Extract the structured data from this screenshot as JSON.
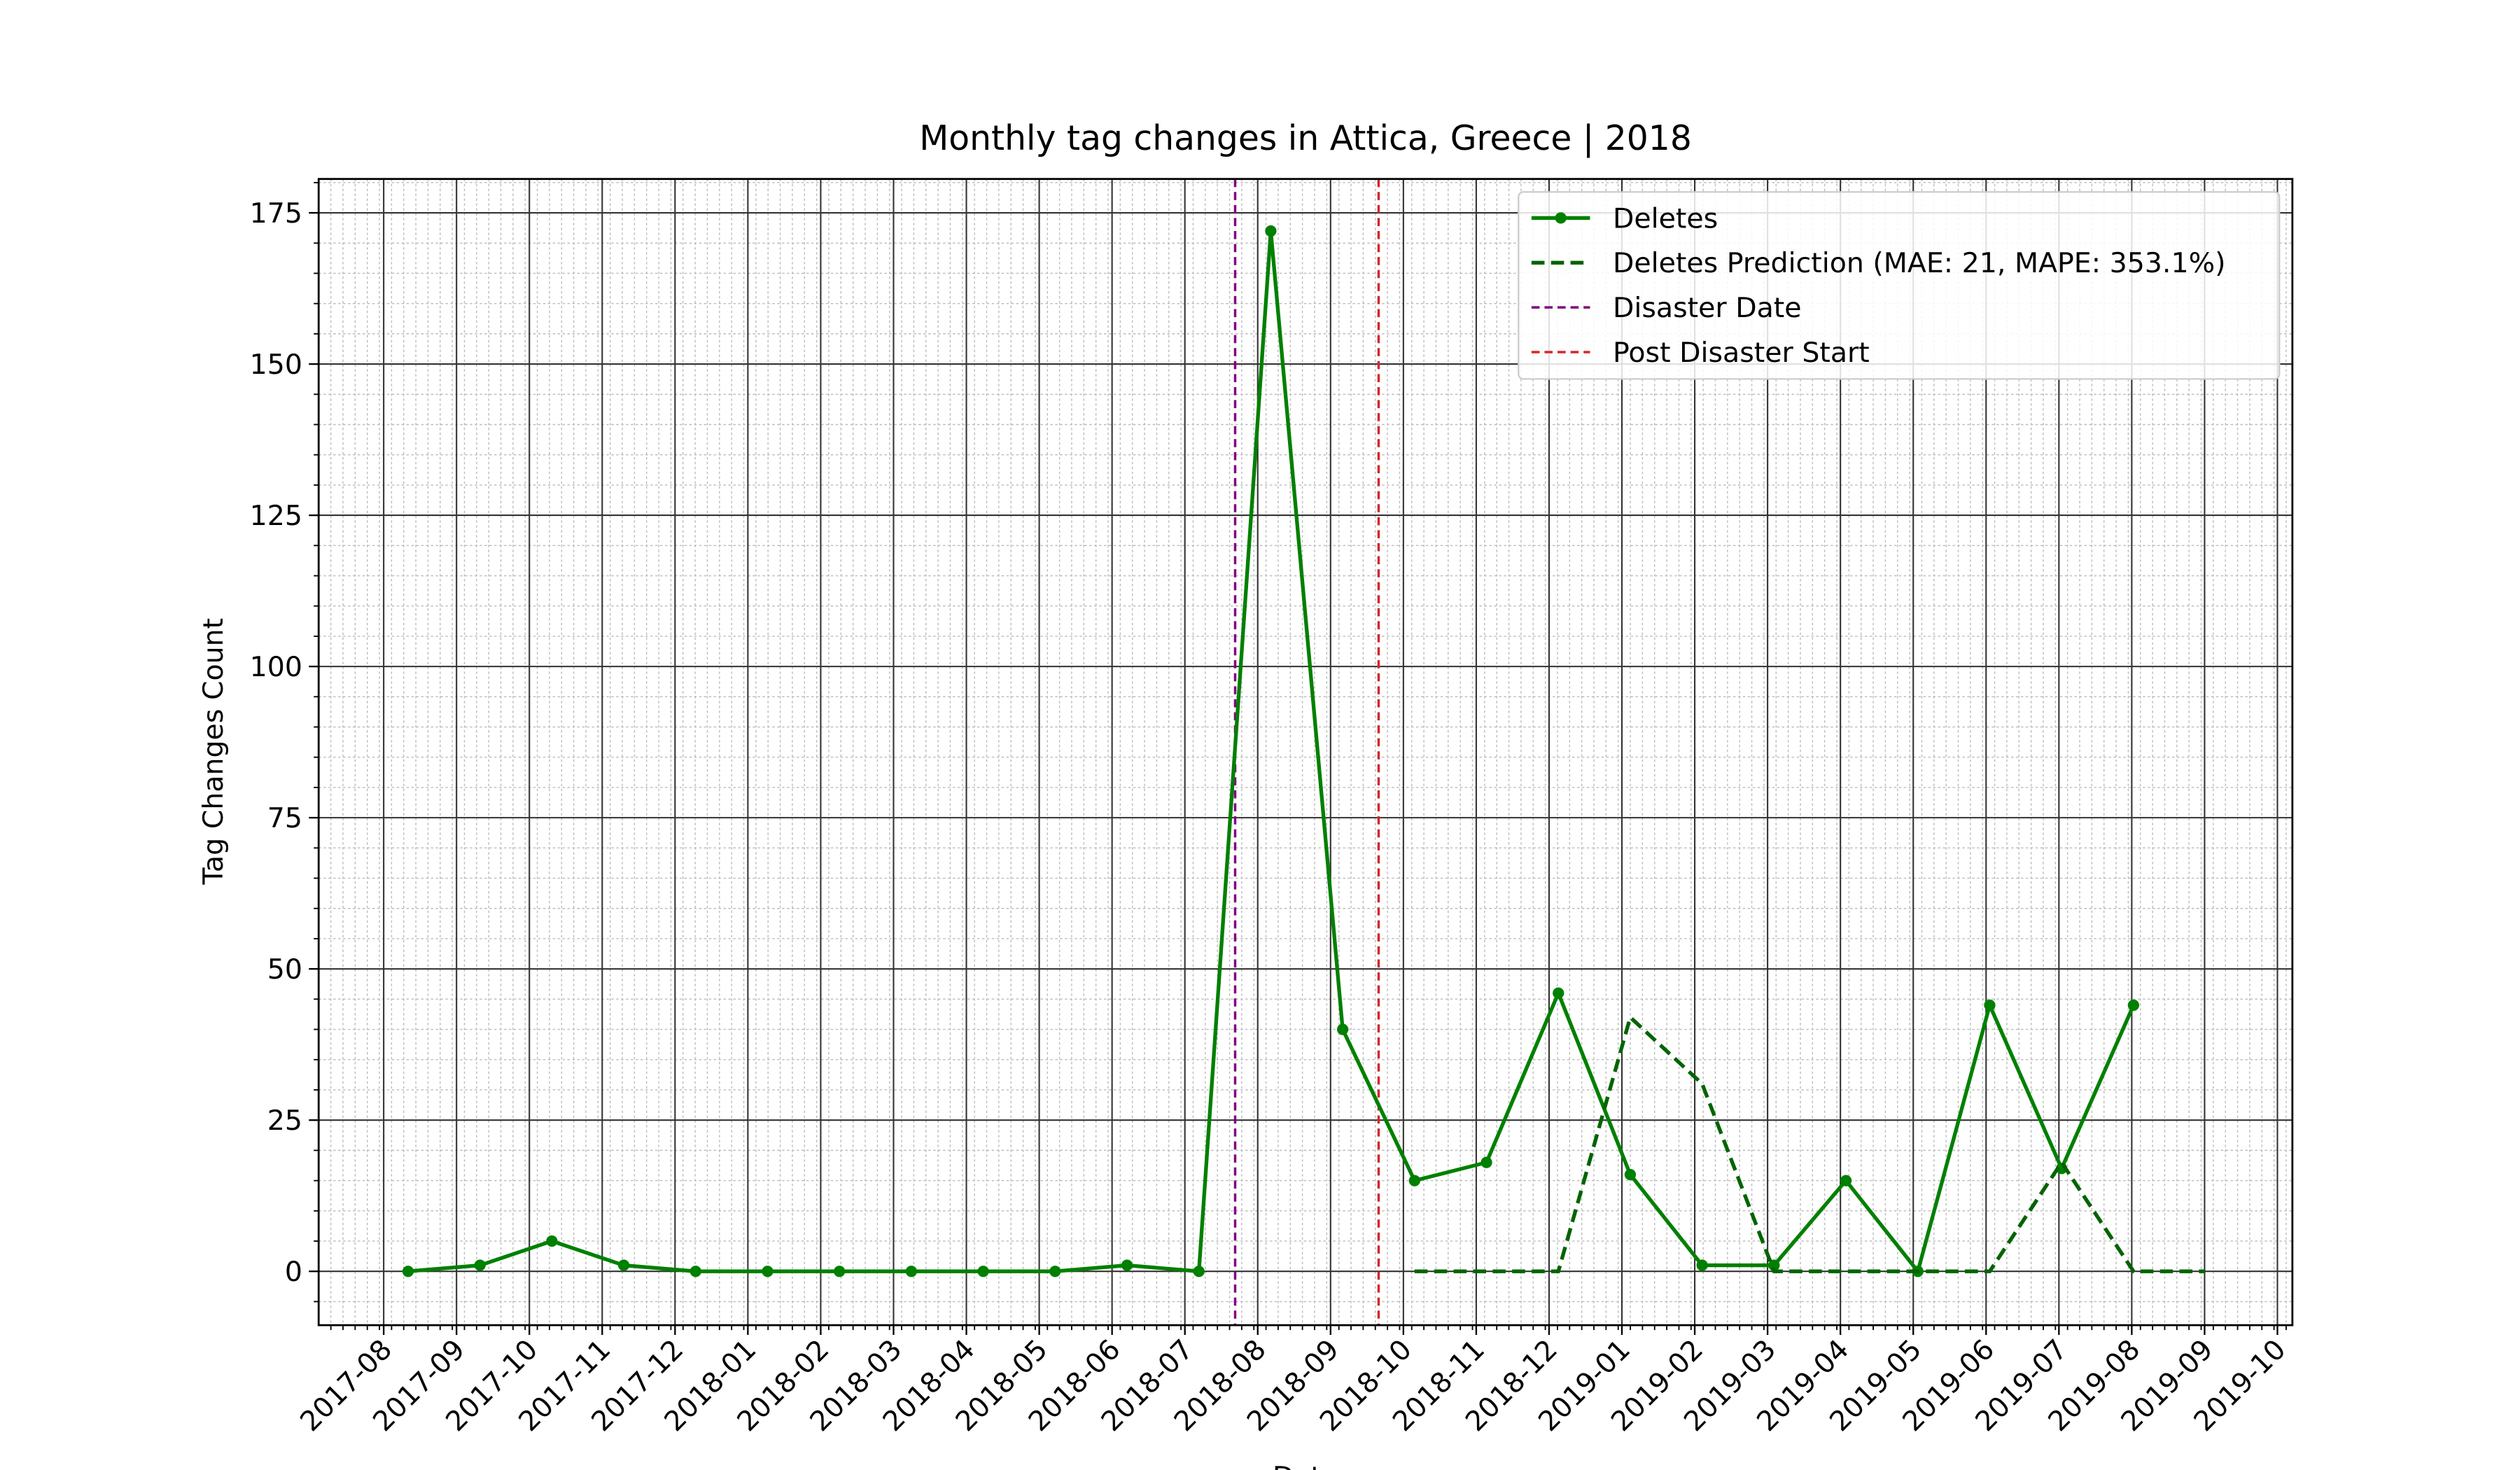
{
  "chart_data": {
    "type": "line",
    "title": "Monthly tag changes in Attica, Greece | 2018",
    "x_label": "Date",
    "y_label": "Tag Changes Count",
    "x": [
      "2017-08",
      "2017-09",
      "2017-10",
      "2017-11",
      "2017-12",
      "2018-01",
      "2018-02",
      "2018-03",
      "2018-04",
      "2018-05",
      "2018-06",
      "2018-07",
      "2018-08",
      "2018-09",
      "2018-10",
      "2018-11",
      "2018-12",
      "2019-01",
      "2019-02",
      "2019-03",
      "2019-04",
      "2019-05",
      "2019-06",
      "2019-07",
      "2019-08",
      "2019-09"
    ],
    "series": [
      {
        "name": "Deletes",
        "color": "green",
        "style": "solid",
        "markers": true,
        "values": [
          0,
          1,
          5,
          1,
          0,
          0,
          0,
          0,
          0,
          0,
          1,
          0,
          172,
          40,
          15,
          18,
          46,
          16,
          1,
          1,
          15,
          0,
          44,
          17,
          44,
          null
        ]
      },
      {
        "name": "Deletes Prediction (MAE: 21, MAPE: 353.1%)",
        "color": "darkgreen",
        "style": "dashed",
        "markers": false,
        "values": [
          null,
          null,
          null,
          null,
          null,
          null,
          null,
          null,
          null,
          null,
          null,
          null,
          null,
          null,
          0,
          0,
          0,
          42,
          31,
          0,
          0,
          0,
          0,
          18,
          0,
          0
        ]
      }
    ],
    "vlines": [
      {
        "name": "Disaster Date",
        "color": "purple",
        "x": "2018-07"
      },
      {
        "name": "Post Disaster Start",
        "color": "#d62728",
        "x": "2018-09"
      }
    ],
    "xticks": [
      "2017-08",
      "2017-09",
      "2017-10",
      "2017-11",
      "2017-12",
      "2018-01",
      "2018-02",
      "2018-03",
      "2018-04",
      "2018-05",
      "2018-06",
      "2018-07",
      "2018-08",
      "2018-09",
      "2018-10",
      "2018-11",
      "2018-12",
      "2019-01",
      "2019-02",
      "2019-03",
      "2019-04",
      "2019-05",
      "2019-06",
      "2019-07",
      "2019-08",
      "2019-09",
      "2019-10"
    ],
    "ylim": [
      -8.9,
      180.6
    ],
    "yticks": [
      0,
      25,
      50,
      75,
      100,
      125,
      150,
      175
    ],
    "grid": true,
    "legend": "upper right"
  }
}
